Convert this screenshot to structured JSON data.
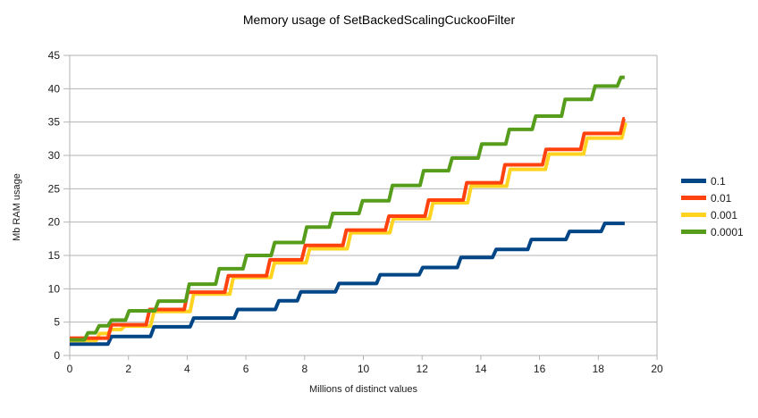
{
  "chart_data": {
    "type": "line",
    "line_style": "step",
    "title": "Memory usage of SetBackedScalingCuckooFilter",
    "xlabel": "Millions of distinct values",
    "ylabel": "Mb RAM usage",
    "xlim": [
      0,
      20
    ],
    "ylim": [
      0,
      45
    ],
    "x_ticks": [
      0,
      2,
      4,
      6,
      8,
      10,
      12,
      14,
      16,
      18,
      20
    ],
    "y_ticks": [
      0,
      5,
      10,
      15,
      20,
      25,
      30,
      35,
      40,
      45
    ],
    "grid": "horizontal",
    "legend_position": "right",
    "x_end": 18.9,
    "series": [
      {
        "name": "0.1",
        "color": "#004586",
        "points": [
          [
            0,
            1.7
          ],
          [
            1.3,
            2.85
          ],
          [
            2.75,
            4.3
          ],
          [
            4.1,
            5.6
          ],
          [
            5.6,
            6.9
          ],
          [
            7.0,
            8.2
          ],
          [
            7.75,
            9.55
          ],
          [
            9.05,
            10.8
          ],
          [
            10.45,
            12.1
          ],
          [
            11.9,
            13.2
          ],
          [
            13.2,
            14.7
          ],
          [
            14.4,
            15.9
          ],
          [
            15.6,
            17.4
          ],
          [
            16.9,
            18.6
          ],
          [
            18.1,
            19.8
          ]
        ]
      },
      {
        "name": "0.01",
        "color": "#FF420E",
        "points": [
          [
            0,
            2.6
          ],
          [
            1.3,
            4.6
          ],
          [
            2.6,
            6.9
          ],
          [
            3.9,
            9.5
          ],
          [
            5.28,
            11.95
          ],
          [
            6.7,
            14.35
          ],
          [
            7.9,
            16.5
          ],
          [
            9.3,
            18.8
          ],
          [
            10.75,
            20.9
          ],
          [
            12.1,
            23.3
          ],
          [
            13.4,
            25.9
          ],
          [
            14.7,
            28.6
          ],
          [
            16.1,
            30.9
          ],
          [
            17.4,
            33.3
          ],
          [
            18.75,
            35.5
          ]
        ]
      },
      {
        "name": "0.001",
        "color": "#FFD320",
        "points": [
          [
            0,
            2.25
          ],
          [
            0.9,
            3.3
          ],
          [
            1.3,
            3.9
          ],
          [
            1.75,
            4.4
          ],
          [
            2.75,
            6.6
          ],
          [
            4.1,
            9.2
          ],
          [
            5.45,
            11.7
          ],
          [
            6.85,
            13.9
          ],
          [
            8.05,
            16.0
          ],
          [
            9.45,
            18.4
          ],
          [
            10.9,
            20.5
          ],
          [
            12.25,
            22.9
          ],
          [
            13.55,
            25.4
          ],
          [
            14.88,
            27.9
          ],
          [
            16.2,
            30.2
          ],
          [
            17.5,
            32.6
          ],
          [
            18.8,
            34.7
          ]
        ]
      },
      {
        "name": "0.0001",
        "color": "#579D1C",
        "points": [
          [
            0,
            2.35
          ],
          [
            0.5,
            3.4
          ],
          [
            0.88,
            4.45
          ],
          [
            1.3,
            5.3
          ],
          [
            1.9,
            6.7
          ],
          [
            2.9,
            8.15
          ],
          [
            3.95,
            10.7
          ],
          [
            4.97,
            13.0
          ],
          [
            5.9,
            15.0
          ],
          [
            6.86,
            16.95
          ],
          [
            7.95,
            19.25
          ],
          [
            8.84,
            21.3
          ],
          [
            9.85,
            23.2
          ],
          [
            10.87,
            25.5
          ],
          [
            11.93,
            27.7
          ],
          [
            12.9,
            29.6
          ],
          [
            13.91,
            31.7
          ],
          [
            14.85,
            33.9
          ],
          [
            15.75,
            35.9
          ],
          [
            16.75,
            38.4
          ],
          [
            17.77,
            40.4
          ],
          [
            18.65,
            41.7
          ]
        ]
      }
    ]
  },
  "colors": {
    "grid": "#b3b3b3",
    "text": "#1a1a1a",
    "background": "#ffffff"
  }
}
